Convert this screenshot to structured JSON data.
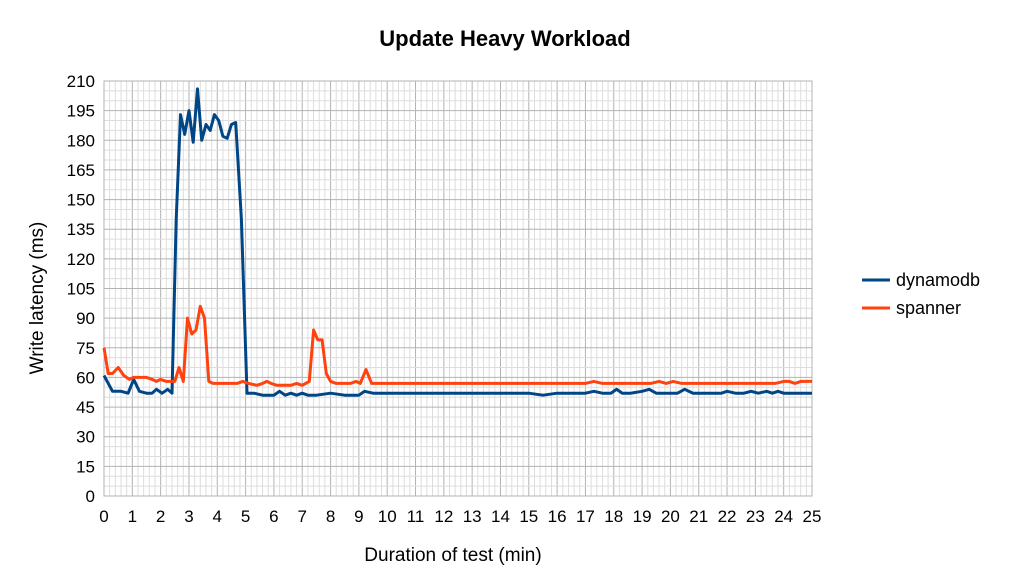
{
  "chart_data": {
    "type": "line",
    "title": "Update Heavy Workload",
    "xlabel": "Duration of test (min)",
    "ylabel": "Write latency (ms)",
    "xlim": [
      0,
      25
    ],
    "ylim": [
      0,
      210
    ],
    "x_ticks": [
      0,
      1,
      2,
      3,
      4,
      5,
      6,
      7,
      8,
      9,
      10,
      11,
      12,
      13,
      14,
      15,
      16,
      17,
      18,
      19,
      20,
      21,
      22,
      23,
      24,
      25
    ],
    "y_ticks": [
      0,
      15,
      30,
      45,
      60,
      75,
      90,
      105,
      120,
      135,
      150,
      165,
      180,
      195,
      210
    ],
    "grid": true,
    "legend_position": "right",
    "series": [
      {
        "name": "dynamodb",
        "color": "#004586",
        "points": [
          [
            0,
            61
          ],
          [
            0.3,
            53
          ],
          [
            0.6,
            53
          ],
          [
            0.85,
            52
          ],
          [
            1.05,
            59
          ],
          [
            1.25,
            53
          ],
          [
            1.5,
            52
          ],
          [
            1.7,
            52
          ],
          [
            1.85,
            54
          ],
          [
            2.05,
            52
          ],
          [
            2.25,
            54
          ],
          [
            2.4,
            52
          ],
          [
            2.55,
            140
          ],
          [
            2.7,
            193
          ],
          [
            2.85,
            183
          ],
          [
            3.0,
            195
          ],
          [
            3.15,
            179
          ],
          [
            3.3,
            206
          ],
          [
            3.45,
            180
          ],
          [
            3.6,
            188
          ],
          [
            3.75,
            185
          ],
          [
            3.9,
            193
          ],
          [
            4.05,
            190
          ],
          [
            4.2,
            182
          ],
          [
            4.35,
            181
          ],
          [
            4.5,
            188
          ],
          [
            4.65,
            189
          ],
          [
            4.85,
            140
          ],
          [
            5.05,
            52
          ],
          [
            5.3,
            52
          ],
          [
            5.6,
            51
          ],
          [
            6,
            51
          ],
          [
            6.2,
            53
          ],
          [
            6.4,
            51
          ],
          [
            6.6,
            52
          ],
          [
            6.8,
            51
          ],
          [
            7.0,
            52
          ],
          [
            7.2,
            51
          ],
          [
            7.5,
            51
          ],
          [
            8.0,
            52
          ],
          [
            8.5,
            51
          ],
          [
            9.0,
            51
          ],
          [
            9.2,
            53
          ],
          [
            9.5,
            52
          ],
          [
            10,
            52
          ],
          [
            10.5,
            52
          ],
          [
            11,
            52
          ],
          [
            11.5,
            52
          ],
          [
            12,
            52
          ],
          [
            12.5,
            52
          ],
          [
            13,
            52
          ],
          [
            13.5,
            52
          ],
          [
            14,
            52
          ],
          [
            14.5,
            52
          ],
          [
            15,
            52
          ],
          [
            15.5,
            51
          ],
          [
            16,
            52
          ],
          [
            16.5,
            52
          ],
          [
            17,
            52
          ],
          [
            17.3,
            53
          ],
          [
            17.6,
            52
          ],
          [
            17.9,
            52
          ],
          [
            18.1,
            54
          ],
          [
            18.3,
            52
          ],
          [
            18.6,
            52
          ],
          [
            19,
            53
          ],
          [
            19.25,
            54
          ],
          [
            19.5,
            52
          ],
          [
            20,
            52
          ],
          [
            20.25,
            52
          ],
          [
            20.5,
            54
          ],
          [
            20.8,
            52
          ],
          [
            21,
            52
          ],
          [
            21.5,
            52
          ],
          [
            21.8,
            52
          ],
          [
            22.0,
            53
          ],
          [
            22.3,
            52
          ],
          [
            22.6,
            52
          ],
          [
            22.85,
            53
          ],
          [
            23.1,
            52
          ],
          [
            23.4,
            53
          ],
          [
            23.6,
            52
          ],
          [
            23.8,
            53
          ],
          [
            24.0,
            52
          ],
          [
            24.3,
            52
          ],
          [
            24.6,
            52
          ],
          [
            24.8,
            52
          ],
          [
            25,
            52
          ]
        ]
      },
      {
        "name": "spanner",
        "color": "#ff420e",
        "points": [
          [
            0,
            75
          ],
          [
            0.15,
            62
          ],
          [
            0.3,
            62
          ],
          [
            0.5,
            65
          ],
          [
            0.7,
            61
          ],
          [
            0.9,
            59
          ],
          [
            1.05,
            60
          ],
          [
            1.3,
            60
          ],
          [
            1.5,
            60
          ],
          [
            1.7,
            59
          ],
          [
            1.85,
            58
          ],
          [
            2.0,
            59
          ],
          [
            2.2,
            58
          ],
          [
            2.5,
            58
          ],
          [
            2.65,
            65
          ],
          [
            2.8,
            58
          ],
          [
            2.95,
            90
          ],
          [
            3.1,
            82
          ],
          [
            3.25,
            84
          ],
          [
            3.4,
            96
          ],
          [
            3.55,
            90
          ],
          [
            3.7,
            58
          ],
          [
            3.85,
            57
          ],
          [
            4.2,
            57
          ],
          [
            4.5,
            57
          ],
          [
            4.7,
            57
          ],
          [
            4.9,
            58
          ],
          [
            5.1,
            57
          ],
          [
            5.4,
            56
          ],
          [
            5.6,
            57
          ],
          [
            5.75,
            58
          ],
          [
            5.9,
            57
          ],
          [
            6.1,
            56
          ],
          [
            6.4,
            56
          ],
          [
            6.6,
            56
          ],
          [
            6.8,
            57
          ],
          [
            7.0,
            56
          ],
          [
            7.25,
            58
          ],
          [
            7.4,
            84
          ],
          [
            7.55,
            79
          ],
          [
            7.7,
            79
          ],
          [
            7.85,
            62
          ],
          [
            8.0,
            58
          ],
          [
            8.2,
            57
          ],
          [
            8.5,
            57
          ],
          [
            8.7,
            57
          ],
          [
            8.9,
            58
          ],
          [
            9.05,
            57
          ],
          [
            9.25,
            64
          ],
          [
            9.45,
            57
          ],
          [
            9.7,
            57
          ],
          [
            10,
            57
          ],
          [
            10.5,
            57
          ],
          [
            11,
            57
          ],
          [
            11.5,
            57
          ],
          [
            12,
            57
          ],
          [
            12.5,
            57
          ],
          [
            13,
            57
          ],
          [
            13.5,
            57
          ],
          [
            14,
            57
          ],
          [
            14.5,
            57
          ],
          [
            15,
            57
          ],
          [
            15.5,
            57
          ],
          [
            16,
            57
          ],
          [
            16.5,
            57
          ],
          [
            17,
            57
          ],
          [
            17.3,
            58
          ],
          [
            17.6,
            57
          ],
          [
            18,
            57
          ],
          [
            18.5,
            57
          ],
          [
            19,
            57
          ],
          [
            19.3,
            57
          ],
          [
            19.6,
            58
          ],
          [
            19.85,
            57
          ],
          [
            20.1,
            58
          ],
          [
            20.4,
            57
          ],
          [
            20.7,
            57
          ],
          [
            21,
            57
          ],
          [
            21.5,
            57
          ],
          [
            22,
            57
          ],
          [
            22.5,
            57
          ],
          [
            23,
            57
          ],
          [
            23.5,
            57
          ],
          [
            23.7,
            57
          ],
          [
            24.0,
            58
          ],
          [
            24.2,
            58
          ],
          [
            24.4,
            57
          ],
          [
            24.6,
            58
          ],
          [
            24.8,
            58
          ],
          [
            25,
            58
          ]
        ]
      }
    ]
  }
}
